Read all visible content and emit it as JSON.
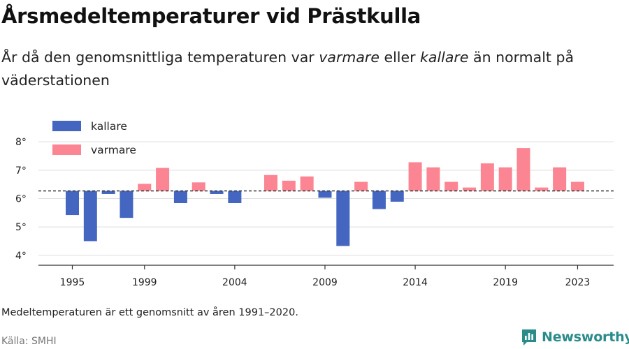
{
  "title": "Årsmedeltemperaturer vid Prästkulla",
  "subtitle": {
    "part1": "År då den genomsnittliga temperaturen var ",
    "warm_word": "varmare",
    "part2": " eller ",
    "cold_word": "kallare",
    "part3": " än normalt på väderstationen"
  },
  "footnote": "Medeltemperaturen är ett genomsnitt av åren 1991–2020.",
  "source": "Källa: SMHI",
  "brand": {
    "name": "Newsworthy",
    "icon": "newsworthy-logo-icon"
  },
  "colors": {
    "colder": "#4466c0",
    "warmer": "#fb8592",
    "baseline": "#333333",
    "grid": "#dddddd"
  },
  "chart_data": {
    "type": "bar",
    "baseline": 6.27,
    "ylim": [
      3.7,
      8.25
    ],
    "yticks": [
      4,
      5,
      6,
      7,
      8
    ],
    "ytick_labels": [
      "4°",
      "5°",
      "6°",
      "7°",
      "8°"
    ],
    "xticks": [
      1995,
      1999,
      2004,
      2009,
      2014,
      2019,
      2023
    ],
    "xtick_labels": [
      "1995",
      "1999",
      "2004",
      "2009",
      "2014",
      "2019",
      "2023"
    ],
    "legend": [
      {
        "key": "colder",
        "label": "kallare"
      },
      {
        "key": "warmer",
        "label": "varmare"
      }
    ],
    "years": [
      1995,
      1996,
      1997,
      1998,
      1999,
      2000,
      2001,
      2002,
      2003,
      2004,
      2005,
      2006,
      2007,
      2008,
      2009,
      2010,
      2011,
      2012,
      2013,
      2014,
      2015,
      2016,
      2017,
      2018,
      2019,
      2020,
      2021,
      2022,
      2023
    ],
    "values": [
      5.42,
      4.5,
      6.16,
      5.32,
      6.52,
      7.08,
      5.84,
      6.57,
      6.16,
      5.84,
      6.27,
      6.83,
      6.63,
      6.78,
      6.03,
      4.33,
      6.59,
      5.63,
      5.89,
      7.28,
      7.1,
      6.59,
      6.39,
      7.24,
      7.1,
      7.78,
      6.39,
      7.1,
      6.59
    ],
    "title": "Årsmedeltemperaturer vid Prästkulla",
    "xlabel": "",
    "ylabel": ""
  }
}
